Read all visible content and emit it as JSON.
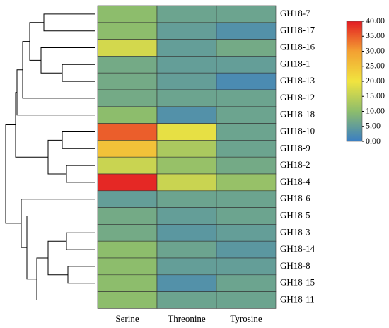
{
  "chart_data": {
    "type": "heatmap",
    "columns": [
      "Serine",
      "Threonine",
      "Tyrosine"
    ],
    "rows": [
      "GH18-7",
      "GH18-17",
      "GH18-16",
      "GH18-1",
      "GH18-13",
      "GH18-12",
      "GH18-18",
      "GH18-10",
      "GH18-9",
      "GH18-2",
      "GH18-4",
      "GH18-6",
      "GH18-5",
      "GH18-3",
      "GH18-14",
      "GH18-8",
      "GH18-15",
      "GH18-11"
    ],
    "values": [
      [
        10,
        6,
        6
      ],
      [
        10,
        5,
        3
      ],
      [
        17,
        5,
        7
      ],
      [
        7,
        5,
        5
      ],
      [
        7,
        5,
        2
      ],
      [
        7,
        6,
        6
      ],
      [
        10,
        3,
        6
      ],
      [
        35,
        19,
        6
      ],
      [
        25,
        13,
        6
      ],
      [
        16,
        11,
        7
      ],
      [
        39,
        16,
        11
      ],
      [
        5,
        6,
        6
      ],
      [
        7,
        5,
        6
      ],
      [
        7,
        4,
        5
      ],
      [
        10,
        6,
        4
      ],
      [
        10,
        5,
        5
      ],
      [
        10,
        3,
        6
      ],
      [
        10,
        6,
        6
      ]
    ],
    "colorscale": [
      "#3a7ec3",
      "#8dbd6c",
      "#f1e43f",
      "#f3a032",
      "#e31b23"
    ],
    "clim": [
      0,
      40
    ],
    "cticks": [
      {
        "value": 0,
        "label": "0.00"
      },
      {
        "value": 5,
        "label": "5.00"
      },
      {
        "value": 10,
        "label": "10.00"
      },
      {
        "value": 15,
        "label": "15.00"
      },
      {
        "value": 20,
        "label": "20.00"
      },
      {
        "value": 25,
        "label": "25.00"
      },
      {
        "value": 30,
        "label": "30.00"
      },
      {
        "value": 35,
        "label": "35.00"
      },
      {
        "value": 40,
        "label": "40.00"
      }
    ]
  }
}
